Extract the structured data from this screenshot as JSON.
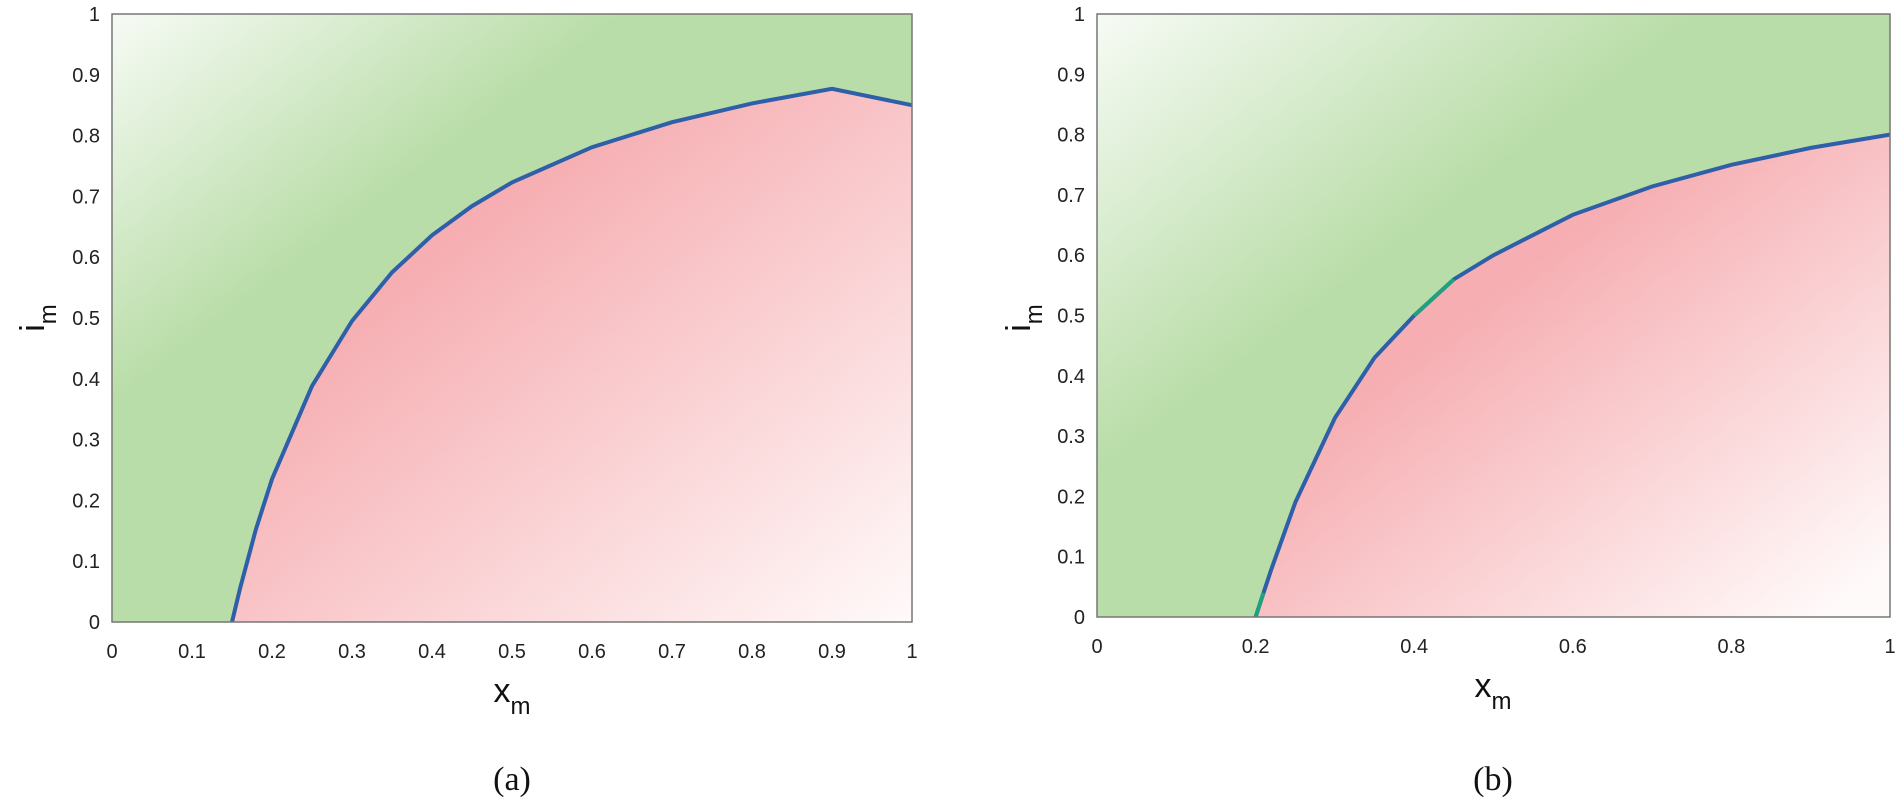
{
  "colors": {
    "feasible": "#b9dda8",
    "feasible_fade": "#f7fbf5",
    "infeasible": "#f6aeb2",
    "infeasible_fade": "#fffafa",
    "boundary": "#2e5fa8",
    "boundary_highlight": "#21a07e"
  },
  "chart_data": [
    {
      "type": "area",
      "panel_label": "(a)",
      "xlabel": {
        "base": "x",
        "sub": "m"
      },
      "ylabel": {
        "base": "i",
        "sub": "m"
      },
      "xlim": [
        0,
        1
      ],
      "ylim": [
        0,
        1
      ],
      "xticks": [
        0,
        0.1,
        0.2,
        0.3,
        0.4,
        0.5,
        0.6,
        0.7,
        0.8,
        0.9,
        1
      ],
      "xtick_labels": [
        "0",
        "0.1",
        "0.2",
        "0.3",
        "0.4",
        "0.5",
        "0.6",
        "0.7",
        "0.8",
        "0.9",
        "1"
      ],
      "yticks": [
        0,
        0.1,
        0.2,
        0.3,
        0.4,
        0.5,
        0.6,
        0.7,
        0.8,
        0.9,
        1
      ],
      "ytick_labels": [
        "0",
        "0.1",
        "0.2",
        "0.3",
        "0.4",
        "0.5",
        "0.6",
        "0.7",
        "0.8",
        "0.9",
        "1"
      ],
      "grid": false,
      "boundary_curve": {
        "x": [
          0.15,
          0.16,
          0.18,
          0.2,
          0.25,
          0.3,
          0.35,
          0.4,
          0.45,
          0.5,
          0.6,
          0.7,
          0.8,
          0.9,
          1.0
        ],
        "y": [
          0.0,
          0.055,
          0.153,
          0.235,
          0.388,
          0.495,
          0.575,
          0.636,
          0.684,
          0.723,
          0.781,
          0.822,
          0.853,
          0.877,
          0.85
        ]
      }
    },
    {
      "type": "area",
      "panel_label": "(b)",
      "xlabel": {
        "base": "x",
        "sub": "m"
      },
      "ylabel": {
        "base": "i",
        "sub": "m"
      },
      "xlim": [
        0,
        1
      ],
      "ylim": [
        0,
        1
      ],
      "xticks": [
        0,
        0.2,
        0.4,
        0.6,
        0.8,
        1
      ],
      "xtick_labels": [
        "0",
        "0.2",
        "0.4",
        "0.6",
        "0.8",
        "1"
      ],
      "yticks": [
        0,
        0.1,
        0.2,
        0.3,
        0.4,
        0.5,
        0.6,
        0.7,
        0.8,
        0.9,
        1
      ],
      "ytick_labels": [
        "0",
        "0.1",
        "0.2",
        "0.3",
        "0.4",
        "0.5",
        "0.6",
        "0.7",
        "0.8",
        "0.9",
        "1"
      ],
      "grid": false,
      "boundary_curve": {
        "x": [
          0.2,
          0.21,
          0.22,
          0.25,
          0.3,
          0.35,
          0.4,
          0.45,
          0.5,
          0.6,
          0.7,
          0.8,
          0.9,
          1.0
        ],
        "y": [
          0.0,
          0.04,
          0.08,
          0.19,
          0.33,
          0.43,
          0.5,
          0.56,
          0.6,
          0.667,
          0.714,
          0.75,
          0.778,
          0.8
        ]
      }
    }
  ]
}
